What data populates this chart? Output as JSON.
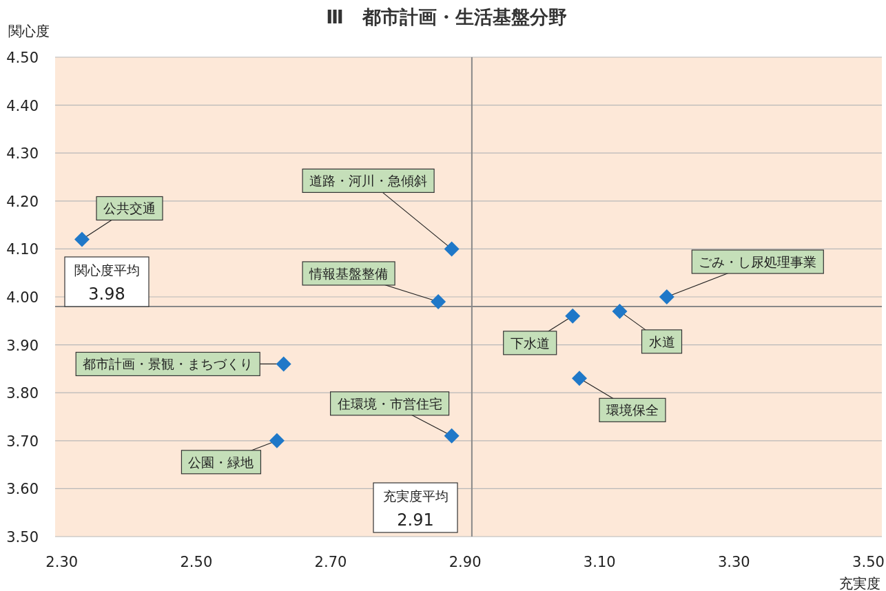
{
  "chart_data": {
    "type": "scatter",
    "title": "Ⅲ　都市計画・生活基盤分野",
    "xlabel": "充実度",
    "ylabel": "関心度",
    "x": [
      2.33,
      2.88,
      2.86,
      3.2,
      3.06,
      3.13,
      2.63,
      3.07,
      2.88,
      2.62
    ],
    "values": [
      4.12,
      4.1,
      3.99,
      4.0,
      3.96,
      3.97,
      3.86,
      3.83,
      3.71,
      3.7
    ],
    "color": "#1f78c8",
    "marker": "diamond",
    "grid": "y",
    "xlim": [
      2.29,
      3.52
    ],
    "ylim": [
      3.5,
      4.5
    ],
    "xticks": [
      {
        "value": 2.3,
        "label": "2.30"
      },
      {
        "value": 2.5,
        "label": "2.50"
      },
      {
        "value": 2.7,
        "label": "2.70"
      },
      {
        "value": 2.9,
        "label": "2.90"
      },
      {
        "value": 3.1,
        "label": "3.10"
      },
      {
        "value": 3.3,
        "label": "3.30"
      },
      {
        "value": 3.5,
        "label": "3.50"
      }
    ],
    "yticks": [
      {
        "value": 3.5,
        "label": "3.50"
      },
      {
        "value": 3.6,
        "label": "3.60"
      },
      {
        "value": 3.7,
        "label": "3.70"
      },
      {
        "value": 3.8,
        "label": "3.80"
      },
      {
        "value": 3.9,
        "label": "3.90"
      },
      {
        "value": 4.0,
        "label": "4.00"
      },
      {
        "value": 4.1,
        "label": "4.10"
      },
      {
        "value": 4.2,
        "label": "4.20"
      },
      {
        "value": 4.3,
        "label": "4.30"
      },
      {
        "value": 4.4,
        "label": "4.40"
      },
      {
        "value": 4.5,
        "label": "4.50"
      }
    ],
    "annotations": [
      {
        "text": "公共交通",
        "x": 2.33,
        "y": 4.12
      },
      {
        "text": "道路・河川・急傾斜",
        "x": 2.88,
        "y": 4.1
      },
      {
        "text": "情報基盤整備",
        "x": 2.86,
        "y": 3.99
      },
      {
        "text": "ごみ・し尿処理事業",
        "x": 3.2,
        "y": 4.0
      },
      {
        "text": "下水道",
        "x": 3.06,
        "y": 3.96
      },
      {
        "text": "水道",
        "x": 3.13,
        "y": 3.97
      },
      {
        "text": "都市計画・景観・まちづくり",
        "x": 2.63,
        "y": 3.86
      },
      {
        "text": "環境保全",
        "x": 3.07,
        "y": 3.83
      },
      {
        "text": "住環境・市営住宅",
        "x": 2.88,
        "y": 3.71
      },
      {
        "text": "公園・緑地",
        "x": 2.62,
        "y": 3.7
      },
      "3.98",
      "2.91"
    ],
    "ref_lines": [
      {
        "axis": "y",
        "value": 3.98,
        "label": "関心度平均"
      },
      {
        "axis": "x",
        "value": 2.91,
        "label": "充実度平均"
      }
    ]
  }
}
